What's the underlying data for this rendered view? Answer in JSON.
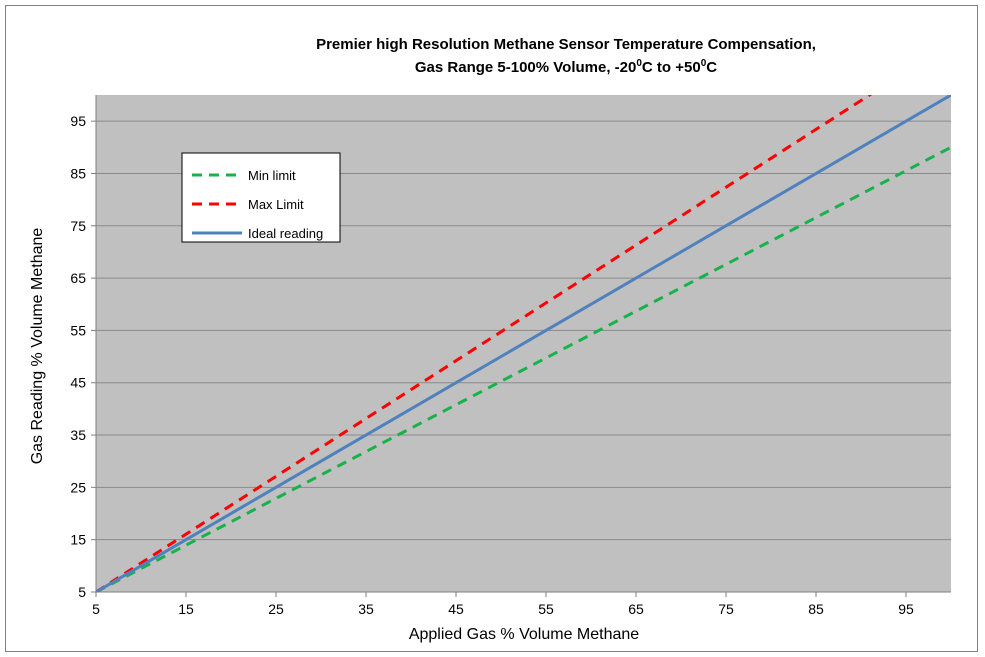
{
  "chart_data": {
    "type": "line",
    "title_line1": "Premier high Resolution Methane Sensor Temperature Compensation,",
    "title_line2": {
      "prefix": "Gas Range 5-100% Volume, -20",
      "sup1": "0",
      "mid": "C to +50",
      "sup2": "0",
      "suffix": "C"
    },
    "xlabel": "Applied Gas % Volume Methane",
    "ylabel": "Gas Reading % Volume Methane",
    "xlim": [
      5,
      100
    ],
    "ylim": [
      5,
      100
    ],
    "xticks": [
      5,
      15,
      25,
      35,
      45,
      55,
      65,
      75,
      85,
      95
    ],
    "yticks": [
      5,
      15,
      25,
      35,
      45,
      55,
      65,
      75,
      85,
      95
    ],
    "grid": true,
    "plot_background": "#c0c0c0",
    "legend_position": "upper-left",
    "series": [
      {
        "name": "Min limit",
        "color": "#17b24a",
        "dash": true,
        "x": [
          5,
          100
        ],
        "y": [
          5,
          90
        ]
      },
      {
        "name": "Max Limit",
        "color": "#ff0000",
        "dash": true,
        "x": [
          5,
          100
        ],
        "y": [
          5,
          110
        ]
      },
      {
        "name": "Ideal reading",
        "color": "#4f81bd",
        "dash": false,
        "x": [
          5,
          100
        ],
        "y": [
          5,
          100
        ]
      }
    ]
  }
}
